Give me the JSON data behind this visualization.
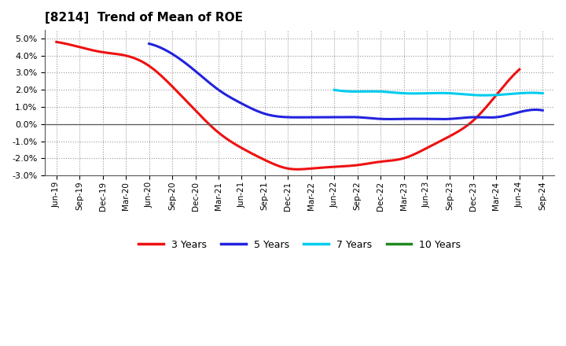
{
  "title": "[8214]  Trend of Mean of ROE",
  "ylim": [
    -0.03,
    0.055
  ],
  "yticks": [
    -0.03,
    -0.02,
    -0.01,
    0.0,
    0.01,
    0.02,
    0.03,
    0.04,
    0.05
  ],
  "background_color": "#ffffff",
  "plot_bg_color": "#ffffff",
  "grid_color": "#999999",
  "series": {
    "3years": {
      "color": "#ee1111",
      "label": "3 Years",
      "x_indices": [
        0,
        1,
        2,
        3,
        4,
        5,
        6,
        7,
        8,
        9,
        10,
        11,
        12,
        13,
        14,
        15,
        16,
        17,
        18,
        19,
        20
      ],
      "values": [
        0.048,
        0.045,
        0.042,
        0.04,
        0.034,
        0.022,
        0.008,
        -0.005,
        -0.014,
        -0.021,
        -0.026,
        -0.026,
        -0.025,
        -0.024,
        -0.022,
        -0.02,
        -0.014,
        -0.007,
        0.002,
        0.017,
        0.032
      ]
    },
    "5years": {
      "color": "#2222dd",
      "label": "5 Years",
      "x_indices": [
        4,
        5,
        6,
        7,
        8,
        9,
        10,
        11,
        12,
        13,
        14,
        15,
        16,
        17,
        18,
        19,
        20,
        21
      ],
      "values": [
        0.047,
        0.041,
        0.031,
        0.02,
        0.012,
        0.006,
        0.004,
        0.004,
        0.004,
        0.004,
        0.003,
        0.003,
        0.003,
        0.003,
        0.004,
        0.004,
        0.007,
        0.008
      ]
    },
    "7years": {
      "color": "#00ccee",
      "label": "7 Years",
      "x_indices": [
        12,
        13,
        14,
        15,
        16,
        17,
        18,
        19,
        20,
        21
      ],
      "values": [
        0.02,
        0.019,
        0.019,
        0.018,
        0.018,
        0.018,
        0.017,
        0.017,
        0.018,
        0.018
      ]
    },
    "10years": {
      "color": "#228822",
      "label": "10 Years",
      "x_indices": [],
      "values": []
    }
  },
  "xtick_labels": [
    "Jun-19",
    "Sep-19",
    "Dec-19",
    "Mar-20",
    "Jun-20",
    "Sep-20",
    "Dec-20",
    "Mar-21",
    "Jun-21",
    "Sep-21",
    "Dec-21",
    "Mar-22",
    "Jun-22",
    "Sep-22",
    "Dec-22",
    "Mar-23",
    "Jun-23",
    "Sep-23",
    "Dec-23",
    "Mar-24",
    "Jun-24",
    "Sep-24"
  ],
  "legend": {
    "labels": [
      "3 Years",
      "5 Years",
      "7 Years",
      "10 Years"
    ],
    "colors": [
      "#ee1111",
      "#2222dd",
      "#00ccee",
      "#228822"
    ]
  }
}
